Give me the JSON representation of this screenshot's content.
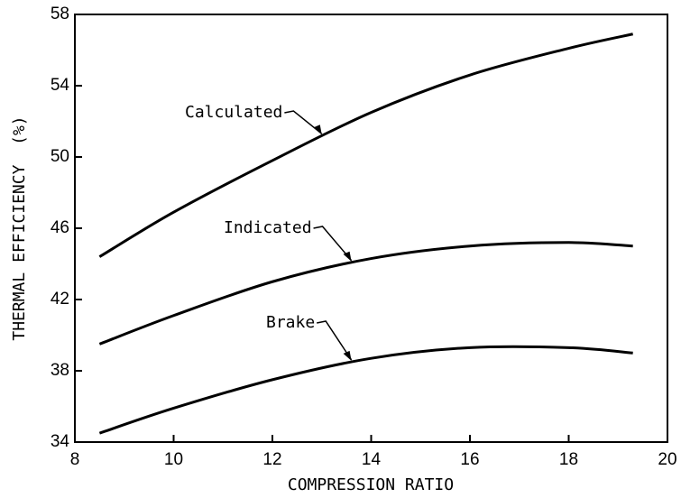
{
  "chart_data": {
    "type": "line",
    "x_label": "COMPRESSION RATIO",
    "y_label": "THERMAL EFFICIENCY  (%)",
    "x": [
      8.5,
      10,
      12,
      14,
      16,
      18,
      19.3
    ],
    "series": [
      {
        "name": "Calculated",
        "color": "#000000",
        "values": [
          44.4,
          46.9,
          49.8,
          52.5,
          54.6,
          56.1,
          56.9
        ]
      },
      {
        "name": "Indicated",
        "color": "#000000",
        "values": [
          39.5,
          41.1,
          43.0,
          44.3,
          45.0,
          45.2,
          45.0
        ]
      },
      {
        "name": "Brake",
        "color": "#000000",
        "values": [
          34.5,
          35.9,
          37.5,
          38.7,
          39.3,
          39.3,
          39.0
        ]
      }
    ],
    "xlim": [
      8,
      20
    ],
    "xticks": [
      8,
      10,
      12,
      14,
      16,
      18,
      20
    ],
    "ylim": [
      34,
      58
    ],
    "yticks": [
      34,
      38,
      42,
      46,
      50,
      54,
      58
    ],
    "grid": false
  }
}
